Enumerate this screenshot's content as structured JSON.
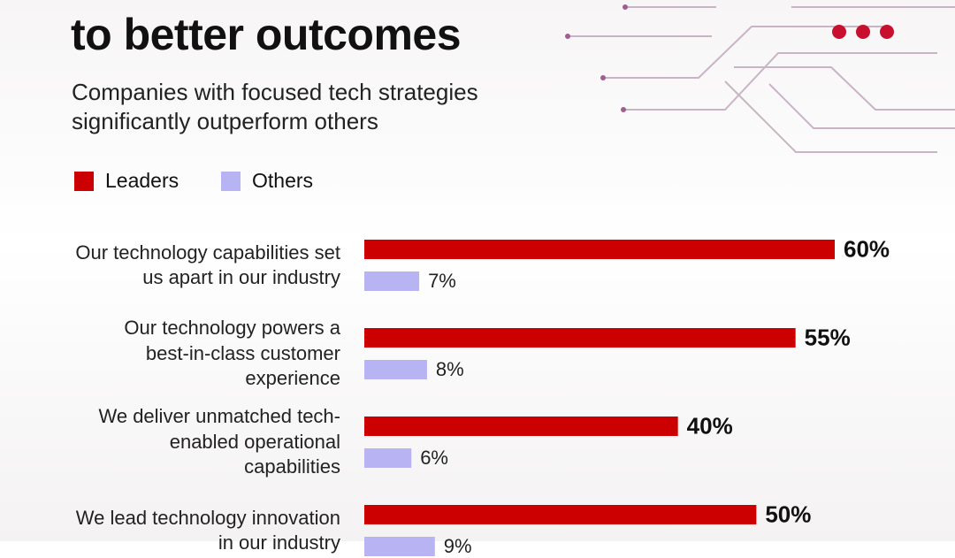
{
  "chart_data": {
    "type": "bar",
    "orientation": "horizontal",
    "title": "to better outcomes",
    "subtitle": "Companies with focused tech strategies significantly outperform others",
    "categories": [
      "Our technology capabilities set us apart in our industry",
      "Our technology powers a best-in-class customer experience",
      "We deliver unmatched tech-enabled operational capabilities",
      "We lead technology innovation in our industry"
    ],
    "series": [
      {
        "name": "Leaders",
        "color": "#cc0000",
        "values": [
          60,
          55,
          40,
          50
        ],
        "value_labels": [
          "60%",
          "55%",
          "40%",
          "50%"
        ]
      },
      {
        "name": "Others",
        "color": "#b8b4f4",
        "values": [
          7,
          8,
          6,
          9
        ],
        "value_labels": [
          "7%",
          "8%",
          "6%",
          "9%"
        ]
      }
    ]
  }
}
